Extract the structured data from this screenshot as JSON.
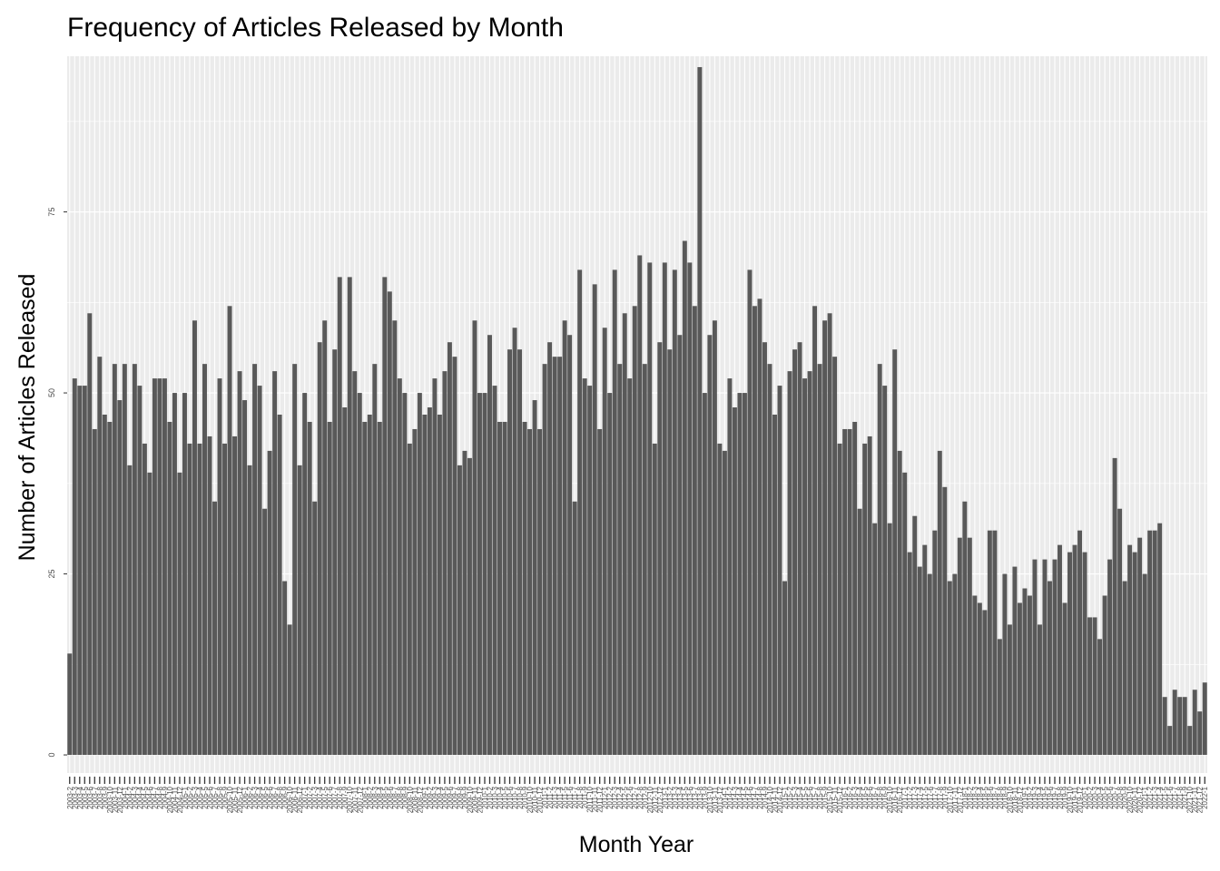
{
  "chart_data": {
    "type": "bar",
    "title": "Frequency of Articles Released by Month",
    "xlabel": "Month Year",
    "ylabel": "Number of Articles Released",
    "ylim": [
      -2.5,
      96.5
    ],
    "yticks": [
      0,
      25,
      50,
      75
    ],
    "grid": true,
    "background_color": "#ebebeb",
    "bar_color": "#595959",
    "start": "2003-2",
    "values": [
      14,
      52,
      51,
      51,
      61,
      45,
      55,
      47,
      46,
      54,
      49,
      54,
      40,
      54,
      51,
      43,
      39,
      52,
      52,
      52,
      46,
      50,
      39,
      50,
      43,
      60,
      43,
      54,
      44,
      35,
      52,
      43,
      62,
      44,
      53,
      49,
      40,
      54,
      51,
      34,
      42,
      53,
      47,
      24,
      18,
      54,
      40,
      50,
      46,
      35,
      57,
      60,
      46,
      56,
      66,
      48,
      66,
      53,
      50,
      46,
      47,
      54,
      46,
      66,
      64,
      60,
      52,
      50,
      43,
      45,
      50,
      47,
      48,
      52,
      47,
      53,
      57,
      55,
      40,
      42,
      41,
      60,
      50,
      50,
      58,
      51,
      46,
      46,
      56,
      59,
      56,
      46,
      45,
      49,
      45,
      54,
      57,
      55,
      55,
      60,
      58,
      35,
      67,
      52,
      51,
      65,
      45,
      59,
      50,
      67,
      54,
      61,
      52,
      62,
      69,
      54,
      68,
      43,
      57,
      68,
      56,
      67,
      58,
      71,
      68,
      62,
      95,
      50,
      58,
      60,
      43,
      42,
      52,
      48,
      50,
      50,
      67,
      62,
      63,
      57,
      54,
      47,
      51,
      24,
      53,
      56,
      57,
      52,
      53,
      62,
      54,
      60,
      61,
      55,
      43,
      45,
      45,
      46,
      34,
      43,
      44,
      32,
      54,
      51,
      32,
      56,
      42,
      39,
      28,
      33,
      26,
      29,
      25,
      31,
      42,
      37,
      24,
      25,
      30,
      35,
      30,
      22,
      21,
      20,
      31,
      31,
      16,
      25,
      18,
      26,
      21,
      23,
      22,
      27,
      18,
      27,
      24,
      27,
      29,
      21,
      28,
      29,
      31,
      28,
      19,
      19,
      16,
      22,
      27,
      41,
      34,
      24,
      29,
      28,
      30,
      25,
      31,
      31,
      32,
      8,
      4,
      9,
      8,
      8,
      4,
      9,
      6,
      10
    ]
  }
}
